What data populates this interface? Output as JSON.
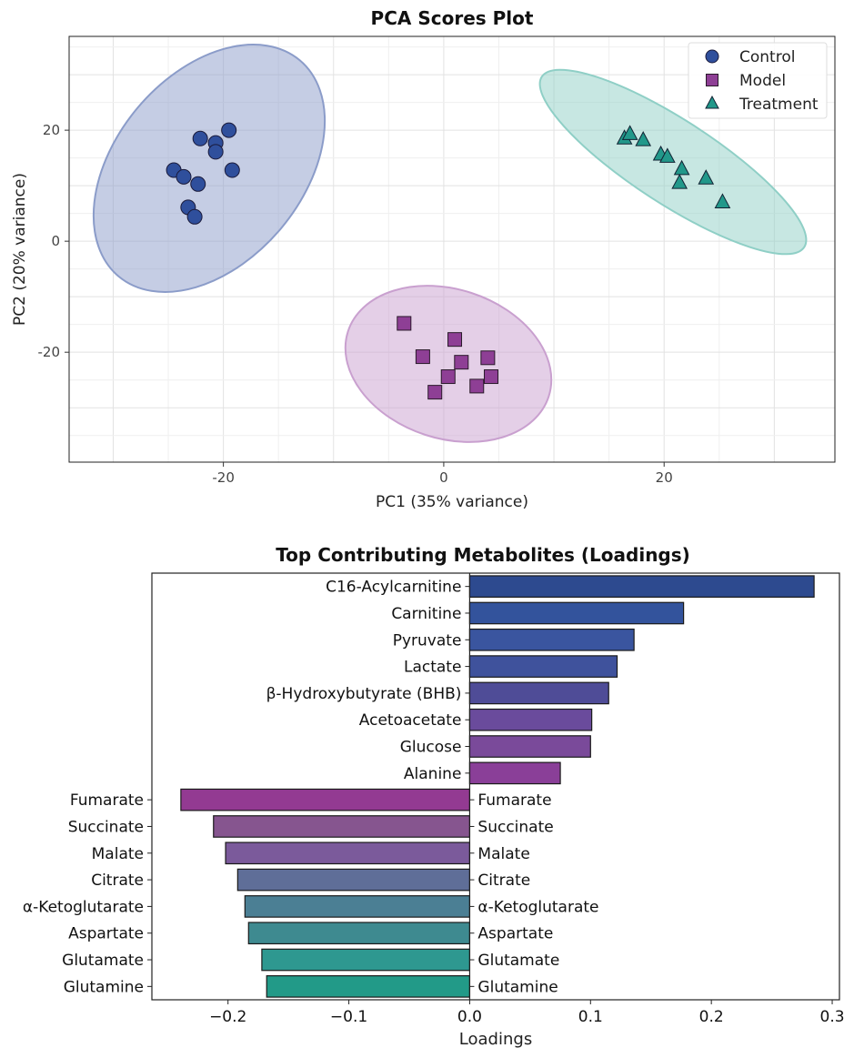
{
  "chart_data": [
    {
      "type": "scatter",
      "title": "PCA Scores Plot",
      "xlabel": "PC1 (35% variance)",
      "ylabel": "PC2 (20% variance)",
      "xlim": [
        -34,
        35.5
      ],
      "ylim": [
        -39.8,
        36.9
      ],
      "xticks": [
        -20,
        0,
        20
      ],
      "yticks": [
        -20,
        0,
        20
      ],
      "grid": true,
      "legend": "top-right",
      "series": [
        {
          "name": "Control",
          "marker": "circle",
          "color": "#2f4f9c",
          "ellipse_color": "#8b9cc9",
          "x": [
            -22.1,
            -20.7,
            -19.5,
            -20.7,
            -19.2,
            -24.5,
            -23.6,
            -22.3,
            -23.2,
            -22.6
          ],
          "y": [
            18.5,
            17.7,
            20.0,
            16.1,
            12.8,
            12.8,
            11.6,
            10.3,
            6.1,
            4.4
          ]
        },
        {
          "name": "Model",
          "marker": "square",
          "color": "#8e3f95",
          "ellipse_color": "#c9a0cf",
          "x": [
            -3.6,
            -1.9,
            1.0,
            1.6,
            4.0,
            0.4,
            4.3,
            -0.8,
            3.0
          ],
          "y": [
            -14.8,
            -20.8,
            -17.7,
            -21.8,
            -21.0,
            -24.4,
            -24.4,
            -27.2,
            -26.1
          ]
        },
        {
          "name": "Treatment",
          "marker": "triangle",
          "color": "#22988a",
          "ellipse_color": "#8fcfc6",
          "x": [
            16.4,
            16.9,
            18.1,
            19.7,
            20.3,
            21.6,
            21.4,
            23.8,
            25.3
          ],
          "y": [
            18.5,
            19.3,
            18.2,
            15.6,
            15.2,
            13.0,
            10.5,
            11.3,
            7.0
          ]
        }
      ]
    },
    {
      "type": "bar",
      "orientation": "horizontal",
      "title": "Top Contributing Metabolites (Loadings)",
      "xlabel": "Loadings",
      "xlim": [
        -0.263,
        0.306
      ],
      "xticks": [
        "−0.2",
        "−0.1",
        "0.0",
        "0.1",
        "0.2",
        "0.3"
      ],
      "xtick_values": [
        -0.2,
        -0.1,
        0,
        0.1,
        0.2,
        0.3
      ],
      "categories": [
        "C16-Acylcarnitine",
        "Carnitine",
        "Pyruvate",
        "Lactate",
        "β-Hydroxybutyrate (BHB)",
        "Acetoacetate",
        "Glucose",
        "Alanine",
        "Fumarate",
        "Succinate",
        "Malate",
        "Citrate",
        "α-Ketoglutarate",
        "Aspartate",
        "Glutamate",
        "Glutamine"
      ],
      "values": [
        0.285,
        0.177,
        0.136,
        0.122,
        0.115,
        0.101,
        0.1,
        0.075,
        -0.239,
        -0.212,
        -0.202,
        -0.192,
        -0.186,
        -0.183,
        -0.172,
        -0.168
      ],
      "colors": [
        "#2d4a8f",
        "#33539c",
        "#3a559f",
        "#3f529c",
        "#4f4c97",
        "#6a4b9c",
        "#7a4a9a",
        "#8a3f98",
        "#933a92",
        "#86558f",
        "#7b5a9b",
        "#5f6e98",
        "#4b7f94",
        "#3e8a90",
        "#2e9890",
        "#229a88"
      ]
    }
  ]
}
